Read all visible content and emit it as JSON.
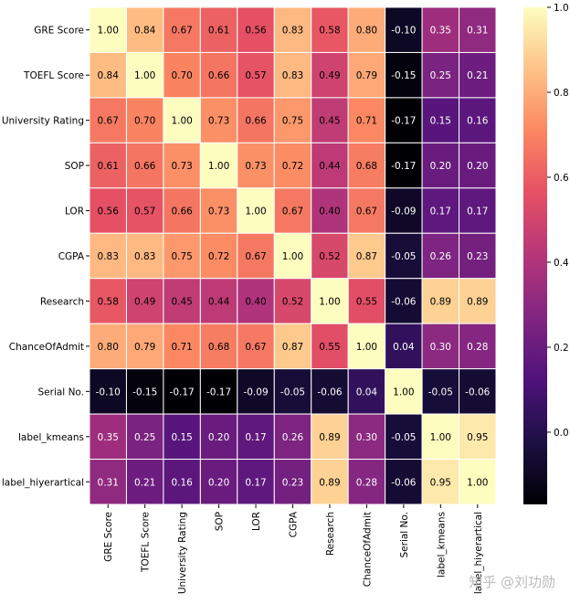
{
  "chart_data": {
    "type": "heatmap",
    "title": "",
    "xlabel": "",
    "ylabel": "",
    "row_labels": [
      "GRE Score",
      "TOEFL Score",
      "University Rating",
      "SOP",
      "LOR ",
      "CGPA",
      "Research",
      "ChanceOfAdmit",
      "Serial No.",
      "label_kmeans",
      "label_hiyerartical"
    ],
    "col_labels": [
      "GRE Score",
      "TOEFL Score",
      "University Rating",
      "SOP",
      "LOR",
      "CGPA",
      "Research",
      "ChanceOfAdmit",
      "Serial No.",
      "label_kmeans",
      "label_hiyerartical"
    ],
    "values": [
      [
        1.0,
        0.84,
        0.67,
        0.61,
        0.56,
        0.83,
        0.58,
        0.8,
        -0.1,
        0.35,
        0.31
      ],
      [
        0.84,
        1.0,
        0.7,
        0.66,
        0.57,
        0.83,
        0.49,
        0.79,
        -0.15,
        0.25,
        0.21
      ],
      [
        0.67,
        0.7,
        1.0,
        0.73,
        0.66,
        0.75,
        0.45,
        0.71,
        -0.17,
        0.15,
        0.16
      ],
      [
        0.61,
        0.66,
        0.73,
        1.0,
        0.73,
        0.72,
        0.44,
        0.68,
        -0.17,
        0.2,
        0.2
      ],
      [
        0.56,
        0.57,
        0.66,
        0.73,
        1.0,
        0.67,
        0.4,
        0.67,
        -0.09,
        0.17,
        0.17
      ],
      [
        0.83,
        0.83,
        0.75,
        0.72,
        0.67,
        1.0,
        0.52,
        0.87,
        -0.05,
        0.26,
        0.23
      ],
      [
        0.58,
        0.49,
        0.45,
        0.44,
        0.4,
        0.52,
        1.0,
        0.55,
        -0.06,
        0.89,
        0.89
      ],
      [
        0.8,
        0.79,
        0.71,
        0.68,
        0.67,
        0.87,
        0.55,
        1.0,
        0.04,
        0.3,
        0.28
      ],
      [
        -0.1,
        -0.15,
        -0.17,
        -0.17,
        -0.09,
        -0.05,
        -0.06,
        0.04,
        1.0,
        -0.05,
        -0.06
      ],
      [
        0.35,
        0.25,
        0.15,
        0.2,
        0.17,
        0.26,
        0.89,
        0.3,
        -0.05,
        1.0,
        0.95
      ],
      [
        0.31,
        0.21,
        0.16,
        0.2,
        0.17,
        0.23,
        0.89,
        0.28,
        -0.06,
        0.95,
        1.0
      ]
    ],
    "value_format": "2 decimals",
    "colormap": "magma",
    "vmin": -0.17,
    "vmax": 1.0,
    "colorbar_ticks": [
      "1.0",
      "0.8",
      "0.6",
      "0.4",
      "0.2",
      "0.0"
    ],
    "colorbar_tick_values": [
      1.0,
      0.8,
      0.6,
      0.4,
      0.2,
      0.0
    ],
    "colors": {
      "grid_line": "#ffffff",
      "text_dark": "#000000",
      "text_light": "#ffffff"
    }
  },
  "watermark": "知乎 @刘功勋"
}
